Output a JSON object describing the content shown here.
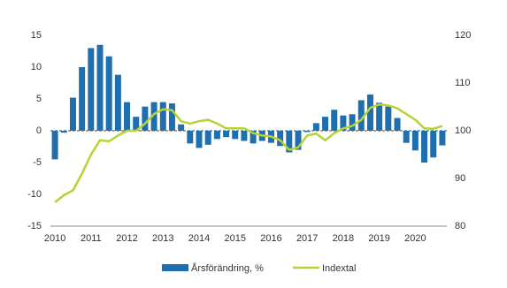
{
  "chart_data": {
    "type": "bar-line",
    "categories": [
      "2010",
      null,
      null,
      null,
      "2011",
      null,
      null,
      null,
      "2012",
      null,
      null,
      null,
      "2013",
      null,
      null,
      null,
      "2014",
      null,
      null,
      null,
      "2015",
      null,
      null,
      null,
      "2016",
      null,
      null,
      null,
      "2017",
      null,
      null,
      null,
      "2018",
      null,
      null,
      null,
      "2019",
      null,
      null,
      null,
      "2020",
      null,
      null,
      null
    ],
    "series": [
      {
        "name": "Årsförändring, %",
        "type": "bar",
        "color": "#1f6fae",
        "values": [
          -4.5,
          -0.3,
          5.2,
          10,
          13,
          13.5,
          11.7,
          8.8,
          4.5,
          2.2,
          3.8,
          4.5,
          4.5,
          4.3,
          1,
          -2,
          -2.7,
          -2.2,
          -1.3,
          -1,
          -1.3,
          -1.6,
          -2,
          -1.6,
          -1.9,
          -2.4,
          -3.4,
          -3,
          -0.2,
          1.2,
          2.2,
          3.3,
          2.4,
          2.6,
          4.8,
          5.7,
          4.4,
          3.8,
          2,
          -1.9,
          -3.1,
          -5,
          -4.2,
          -2.3
        ]
      },
      {
        "name": "Indextal",
        "type": "line",
        "axis": "y2",
        "color": "#b5d334",
        "values": [
          85,
          86.5,
          87.5,
          91,
          95,
          98,
          97.8,
          99,
          100,
          100,
          101.5,
          103.5,
          104.5,
          104.3,
          102,
          101.5,
          102,
          102.3,
          101.5,
          100.5,
          100.5,
          100.5,
          99.5,
          99,
          98.8,
          98,
          96,
          96.5,
          99,
          99.4,
          98,
          99.5,
          100.5,
          101,
          102.3,
          104.8,
          105.5,
          105.3,
          104.7,
          103.5,
          102.3,
          100.5,
          100.4,
          101
        ]
      }
    ],
    "ylim": [
      -15,
      15
    ],
    "yticks": [
      -15,
      -10,
      -5,
      0,
      5,
      10,
      15
    ],
    "y2lim": [
      80,
      120
    ],
    "y2ticks": [
      80,
      90,
      100,
      110,
      120
    ],
    "legend": "bottom"
  }
}
